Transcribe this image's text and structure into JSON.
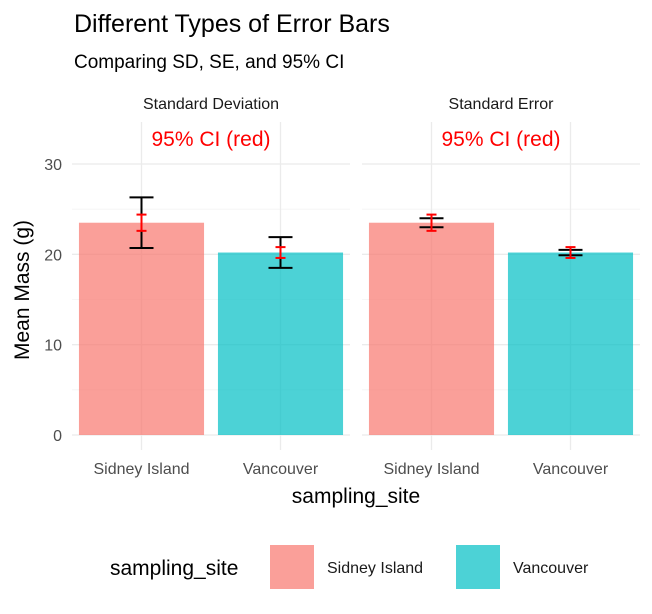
{
  "chart_data": {
    "type": "bar",
    "title": "Different Types of Error Bars",
    "subtitle": "Comparing SD, SE, and 95% CI",
    "xlabel": "sampling_site",
    "ylabel": "Mean Mass (g)",
    "ylim": [
      0,
      30
    ],
    "yticks": [
      0,
      10,
      20,
      30
    ],
    "categories": [
      "Sidney Island",
      "Vancouver"
    ],
    "colors": {
      "Sidney Island": "#F8766D",
      "Vancouver": "#00BFC4",
      "ci": "#FF0000",
      "errorbar": "#000000"
    },
    "annotation": "95% CI (red)",
    "legend": {
      "title": "sampling_site",
      "position": "bottom",
      "entries": [
        "Sidney Island",
        "Vancouver"
      ]
    },
    "facets": [
      {
        "label": "Standard Deviation",
        "bars": [
          {
            "category": "Sidney Island",
            "value": 23.5,
            "err_low": 20.7,
            "err_high": 26.3,
            "ci_low": 22.6,
            "ci_high": 24.4
          },
          {
            "category": "Vancouver",
            "value": 20.2,
            "err_low": 18.5,
            "err_high": 21.9,
            "ci_low": 19.6,
            "ci_high": 20.8
          }
        ]
      },
      {
        "label": "Standard Error",
        "bars": [
          {
            "category": "Sidney Island",
            "value": 23.5,
            "err_low": 23.0,
            "err_high": 24.0,
            "ci_low": 22.6,
            "ci_high": 24.4
          },
          {
            "category": "Vancouver",
            "value": 20.2,
            "err_low": 19.9,
            "err_high": 20.5,
            "ci_low": 19.6,
            "ci_high": 20.8
          }
        ]
      }
    ]
  }
}
